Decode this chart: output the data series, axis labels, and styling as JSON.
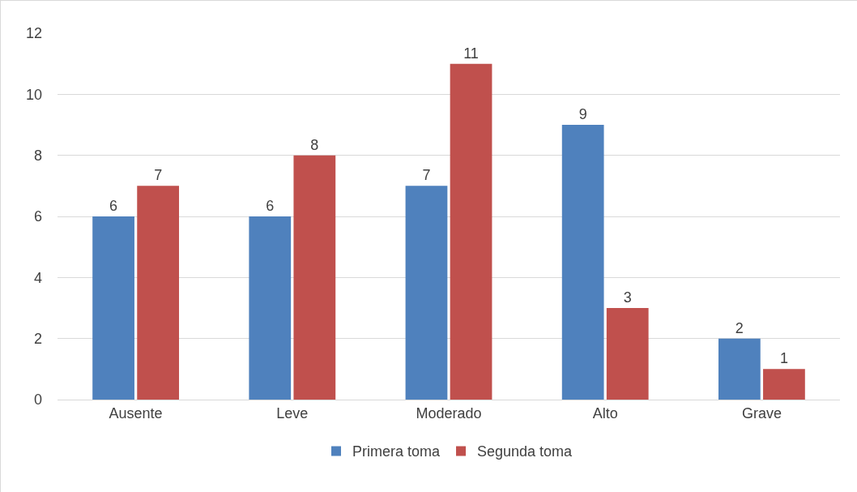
{
  "chart_data": {
    "type": "bar",
    "categories": [
      "Ausente",
      "Leve",
      "Moderado",
      "Alto",
      "Grave"
    ],
    "series": [
      {
        "name": "Primera toma",
        "color": "#4f81bd",
        "values": [
          6,
          6,
          7,
          9,
          2
        ]
      },
      {
        "name": "Segunda toma",
        "color": "#c0504d",
        "values": [
          7,
          8,
          11,
          3,
          1
        ]
      }
    ],
    "ylim": [
      0,
      12
    ],
    "yticks": [
      0,
      2,
      4,
      6,
      8,
      10,
      12
    ],
    "grid": "y",
    "legend": "bottom",
    "data_labels": true
  }
}
